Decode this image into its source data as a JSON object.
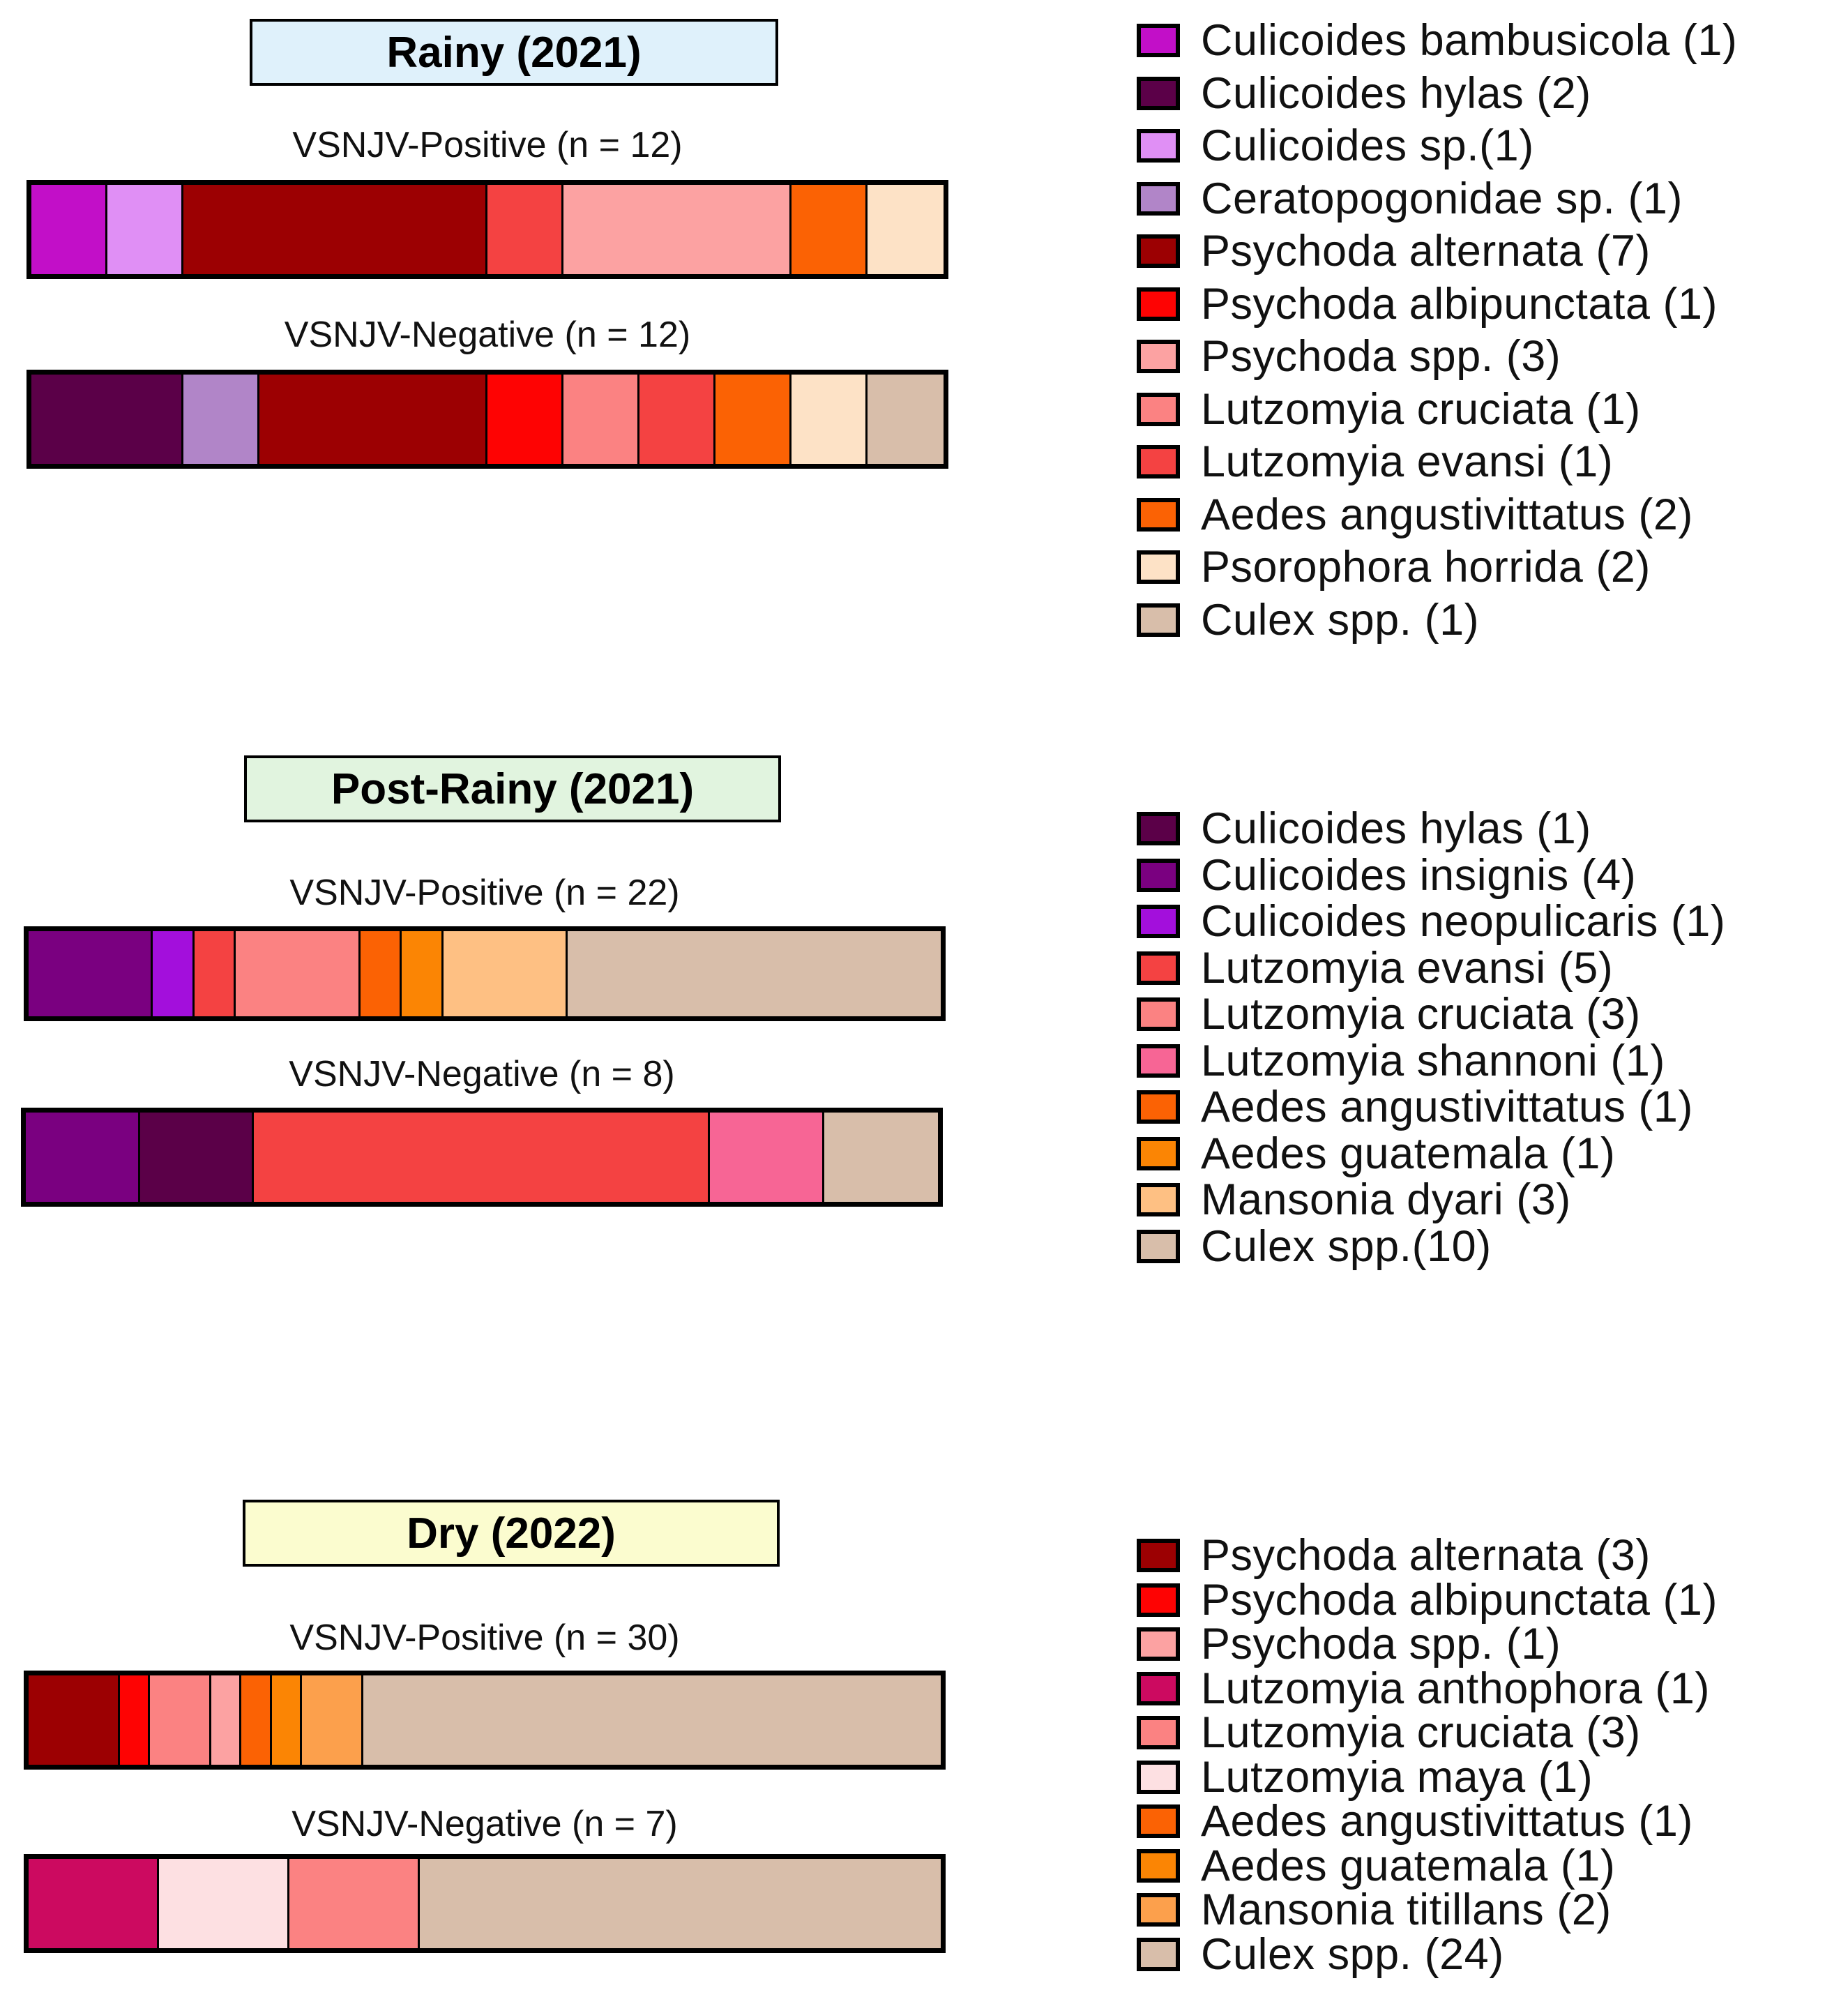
{
  "seasons": [
    {
      "title": "Rainy (2021)",
      "title_color": "#dff1fb",
      "bars": [
        {
          "label": "VSNJV-Positive (n = 12)",
          "segments": [
            {
              "color": "#c20fc8",
              "count": 1
            },
            {
              "color": "#e08ff5",
              "count": 1
            },
            {
              "color": "#9c0002",
              "count": 4
            },
            {
              "color": "#f44242",
              "count": 1
            },
            {
              "color": "#fca2a2",
              "count": 3
            },
            {
              "color": "#fb6204",
              "count": 1
            },
            {
              "color": "#fde2c6",
              "count": 1
            }
          ]
        },
        {
          "label": "VSNJV-Negative (n = 12)",
          "segments": [
            {
              "color": "#5b0048",
              "count": 2
            },
            {
              "color": "#b185c8",
              "count": 1
            },
            {
              "color": "#9c0002",
              "count": 3
            },
            {
              "color": "#fe0303",
              "count": 1
            },
            {
              "color": "#fb8282",
              "count": 1
            },
            {
              "color": "#f44242",
              "count": 1
            },
            {
              "color": "#fb6204",
              "count": 1
            },
            {
              "color": "#fde2c6",
              "count": 1
            },
            {
              "color": "#d8beaa",
              "count": 1
            }
          ]
        }
      ],
      "legend": [
        {
          "label": "Culicoides bambusicola (1)",
          "color": "#c20fc8"
        },
        {
          "label": "Culicoides hylas (2)",
          "color": "#5b0048"
        },
        {
          "label": "Culicoides sp.(1)",
          "color": "#e08ff5"
        },
        {
          "label": "Ceratopogonidae sp. (1)",
          "color": "#b185c8"
        },
        {
          "label": "Psychoda alternata (7)",
          "color": "#9c0002"
        },
        {
          "label": "Psychoda albipunctata (1)",
          "color": "#fe0303"
        },
        {
          "label": "Psychoda spp. (3)",
          "color": "#fca2a2"
        },
        {
          "label": "Lutzomyia cruciata (1)",
          "color": "#fb8282"
        },
        {
          "label": "Lutzomyia evansi (1)",
          "color": "#f44242"
        },
        {
          "label": "Aedes angustivittatus (2)",
          "color": "#fb6204"
        },
        {
          "label": "Psorophora horrida (2)",
          "color": "#fde2c6"
        },
        {
          "label": "Culex spp. (1)",
          "color": "#d8beaa"
        }
      ]
    },
    {
      "title": "Post-Rainy (2021)",
      "title_color": "#e1f4df",
      "bars": [
        {
          "label": "VSNJV-Positive (n = 22)",
          "segments": [
            {
              "color": "#7a0080",
              "count": 3
            },
            {
              "color": "#a30fdc",
              "count": 1
            },
            {
              "color": "#f44242",
              "count": 1
            },
            {
              "color": "#fb8282",
              "count": 3
            },
            {
              "color": "#fb6204",
              "count": 1
            },
            {
              "color": "#fb8504",
              "count": 1
            },
            {
              "color": "#fec083",
              "count": 3
            },
            {
              "color": "#d8beaa",
              "count": 9
            }
          ]
        },
        {
          "label": "VSNJV-Negative (n = 8)",
          "segments": [
            {
              "color": "#7a0080",
              "count": 1
            },
            {
              "color": "#5b0048",
              "count": 1
            },
            {
              "color": "#f44242",
              "count": 4
            },
            {
              "color": "#f76595",
              "count": 1
            },
            {
              "color": "#d8beaa",
              "count": 1
            }
          ]
        }
      ],
      "legend": [
        {
          "label": "Culicoides hylas (1)",
          "color": "#5b0048"
        },
        {
          "label": "Culicoides insignis (4)",
          "color": "#7a0080"
        },
        {
          "label": "Culicoides neopulicaris (1)",
          "color": "#a30fdc"
        },
        {
          "label": "Lutzomyia evansi (5)",
          "color": "#f44242"
        },
        {
          "label": "Lutzomyia cruciata (3)",
          "color": "#fb8282"
        },
        {
          "label": "Lutzomyia shannoni (1)",
          "color": "#f76595"
        },
        {
          "label": "Aedes angustivittatus (1)",
          "color": "#fb6204"
        },
        {
          "label": "Aedes guatemala (1)",
          "color": "#fb8504"
        },
        {
          "label": "Mansonia dyari (3)",
          "color": "#fec083"
        },
        {
          "label": "Culex spp.(10)",
          "color": "#d8beaa"
        }
      ]
    },
    {
      "title": "Dry (2022)",
      "title_color": "#fbfccf",
      "bars": [
        {
          "label": "VSNJV-Positive (n = 30)",
          "segments": [
            {
              "color": "#9c0002",
              "count": 3
            },
            {
              "color": "#fe0303",
              "count": 1
            },
            {
              "color": "#fb8282",
              "count": 2
            },
            {
              "color": "#fca2a2",
              "count": 1
            },
            {
              "color": "#fb6204",
              "count": 1
            },
            {
              "color": "#fb8504",
              "count": 1
            },
            {
              "color": "#fca04c",
              "count": 2
            },
            {
              "color": "#d8beaa",
              "count": 19
            }
          ]
        },
        {
          "label": "VSNJV-Negative (n = 7)",
          "segments": [
            {
              "color": "#cc0a60",
              "count": 1
            },
            {
              "color": "#fde0e2",
              "count": 1
            },
            {
              "color": "#fb8282",
              "count": 1
            },
            {
              "color": "#d8beaa",
              "count": 4
            }
          ]
        }
      ],
      "legend": [
        {
          "label": "Psychoda alternata (3)",
          "color": "#9c0002"
        },
        {
          "label": "Psychoda albipunctata (1)",
          "color": "#fe0303"
        },
        {
          "label": "Psychoda spp. (1)",
          "color": "#fca2a2"
        },
        {
          "label": "Lutzomyia anthophora (1)",
          "color": "#cc0a60"
        },
        {
          "label": "Lutzomyia cruciata (3)",
          "color": "#fb8282"
        },
        {
          "label": "Lutzomyia maya (1)",
          "color": "#fde0e2"
        },
        {
          "label": "Aedes angustivittatus (1)",
          "color": "#fb6204"
        },
        {
          "label": "Aedes guatemala (1)",
          "color": "#fb8504"
        },
        {
          "label": "Mansonia titillans (2)",
          "color": "#fca04c"
        },
        {
          "label": "Culex spp. (24)",
          "color": "#d8beaa"
        }
      ]
    }
  ],
  "chart_data": [
    {
      "type": "bar",
      "title": "Rainy (2021)",
      "orientation": "horizontal-stacked-proportion",
      "categories": [
        "VSNJV-Positive (n = 12)",
        "VSNJV-Negative (n = 12)"
      ],
      "series": [
        {
          "name": "Culicoides bambusicola",
          "values": [
            1,
            0
          ]
        },
        {
          "name": "Culicoides hylas",
          "values": [
            0,
            2
          ]
        },
        {
          "name": "Culicoides sp.",
          "values": [
            1,
            0
          ]
        },
        {
          "name": "Ceratopogonidae sp.",
          "values": [
            0,
            1
          ]
        },
        {
          "name": "Psychoda alternata",
          "values": [
            4,
            3
          ]
        },
        {
          "name": "Psychoda albipunctata",
          "values": [
            0,
            1
          ]
        },
        {
          "name": "Psychoda spp.",
          "values": [
            3,
            0
          ]
        },
        {
          "name": "Lutzomyia cruciata",
          "values": [
            0,
            1
          ]
        },
        {
          "name": "Lutzomyia evansi",
          "values": [
            1,
            1
          ]
        },
        {
          "name": "Aedes angustivittatus",
          "values": [
            1,
            1
          ]
        },
        {
          "name": "Psorophora horrida",
          "values": [
            1,
            1
          ]
        },
        {
          "name": "Culex spp.",
          "values": [
            0,
            1
          ]
        }
      ]
    },
    {
      "type": "bar",
      "title": "Post-Rainy (2021)",
      "orientation": "horizontal-stacked-proportion",
      "categories": [
        "VSNJV-Positive (n = 22)",
        "VSNJV-Negative (n = 8)"
      ],
      "series": [
        {
          "name": "Culicoides hylas",
          "values": [
            0,
            1
          ]
        },
        {
          "name": "Culicoides insignis",
          "values": [
            3,
            1
          ]
        },
        {
          "name": "Culicoides neopulicaris",
          "values": [
            1,
            0
          ]
        },
        {
          "name": "Lutzomyia evansi",
          "values": [
            1,
            4
          ]
        },
        {
          "name": "Lutzomyia cruciata",
          "values": [
            3,
            0
          ]
        },
        {
          "name": "Lutzomyia shannoni",
          "values": [
            0,
            1
          ]
        },
        {
          "name": "Aedes angustivittatus",
          "values": [
            1,
            0
          ]
        },
        {
          "name": "Aedes guatemala",
          "values": [
            1,
            0
          ]
        },
        {
          "name": "Mansonia dyari",
          "values": [
            3,
            0
          ]
        },
        {
          "name": "Culex spp.",
          "values": [
            9,
            1
          ]
        }
      ]
    },
    {
      "type": "bar",
      "title": "Dry (2022)",
      "orientation": "horizontal-stacked-proportion",
      "categories": [
        "VSNJV-Positive (n = 30)",
        "VSNJV-Negative (n = 7)"
      ],
      "series": [
        {
          "name": "Psychoda alternata",
          "values": [
            3,
            0
          ]
        },
        {
          "name": "Psychoda albipunctata",
          "values": [
            1,
            0
          ]
        },
        {
          "name": "Psychoda spp.",
          "values": [
            1,
            0
          ]
        },
        {
          "name": "Lutzomyia anthophora",
          "values": [
            0,
            1
          ]
        },
        {
          "name": "Lutzomyia cruciata",
          "values": [
            2,
            1
          ]
        },
        {
          "name": "Lutzomyia maya",
          "values": [
            0,
            1
          ]
        },
        {
          "name": "Aedes angustivittatus",
          "values": [
            1,
            0
          ]
        },
        {
          "name": "Aedes guatemala",
          "values": [
            1,
            0
          ]
        },
        {
          "name": "Mansonia titillans",
          "values": [
            2,
            0
          ]
        },
        {
          "name": "Culex spp.",
          "values": [
            19,
            4
          ]
        }
      ]
    }
  ]
}
